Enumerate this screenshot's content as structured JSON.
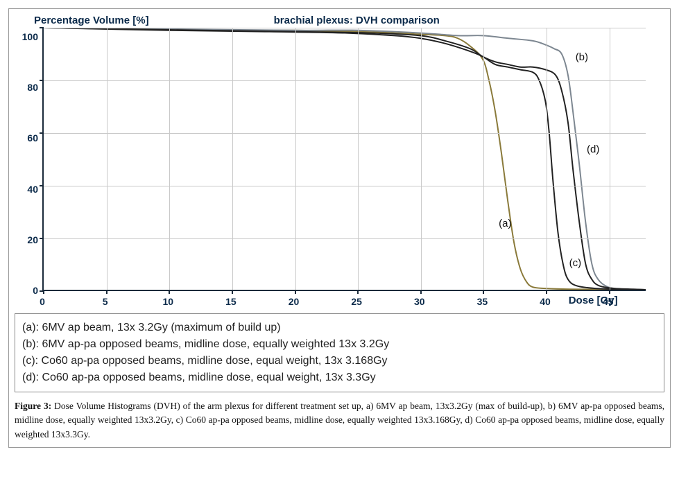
{
  "chart": {
    "type": "line",
    "y_axis_title": "Percentage Volume [%]",
    "title": "brachial plexus: DVH comparison",
    "x_axis_title": "Dose [Gy]",
    "xlim": [
      0,
      48
    ],
    "ylim": [
      0,
      100
    ],
    "x_ticks": [
      0,
      5,
      10,
      15,
      20,
      25,
      30,
      35,
      40,
      45
    ],
    "y_ticks": [
      0,
      20,
      40,
      60,
      80,
      100
    ],
    "grid_color": "#c9c9c9",
    "axis_color": "#1a2a3a",
    "background_color": "#ffffff",
    "text_color": "#0b2a4a",
    "line_width": 2,
    "series": {
      "a": {
        "label": "(a)",
        "color": "#8a7a3a",
        "points": [
          [
            0,
            100
          ],
          [
            5,
            100
          ],
          [
            10,
            99.5
          ],
          [
            15,
            99
          ],
          [
            20,
            99
          ],
          [
            25,
            98.5
          ],
          [
            28,
            98
          ],
          [
            30,
            97.5
          ],
          [
            32,
            97
          ],
          [
            33,
            96
          ],
          [
            34,
            93
          ],
          [
            35,
            88
          ],
          [
            35.5,
            80
          ],
          [
            36,
            68
          ],
          [
            36.5,
            52
          ],
          [
            37,
            34
          ],
          [
            37.5,
            18
          ],
          [
            38,
            8
          ],
          [
            38.5,
            3
          ],
          [
            39,
            1
          ],
          [
            40,
            0.5
          ],
          [
            42,
            0.2
          ],
          [
            45,
            0.1
          ],
          [
            48,
            0
          ]
        ],
        "label_pos": [
          36.2,
          28
        ]
      },
      "b": {
        "label": "(b)",
        "color": "#7d8791",
        "points": [
          [
            0,
            100
          ],
          [
            10,
            99.5
          ],
          [
            20,
            99
          ],
          [
            25,
            99
          ],
          [
            30,
            98
          ],
          [
            33,
            97
          ],
          [
            35,
            97
          ],
          [
            37,
            96
          ],
          [
            39,
            95
          ],
          [
            40,
            93.5
          ],
          [
            40.7,
            92
          ],
          [
            41.3,
            90
          ],
          [
            41.8,
            82
          ],
          [
            42.2,
            68
          ],
          [
            42.7,
            48
          ],
          [
            43.2,
            26
          ],
          [
            43.7,
            10
          ],
          [
            44.2,
            4
          ],
          [
            45,
            1
          ],
          [
            46,
            0.3
          ],
          [
            48,
            0
          ]
        ],
        "label_pos": [
          42.3,
          91
        ]
      },
      "c": {
        "label": "(c)",
        "color": "#222222",
        "points": [
          [
            0,
            100
          ],
          [
            10,
            99
          ],
          [
            18,
            98.5
          ],
          [
            24,
            98
          ],
          [
            28,
            97
          ],
          [
            30,
            96
          ],
          [
            32,
            94
          ],
          [
            34,
            91
          ],
          [
            35,
            89
          ],
          [
            36,
            86
          ],
          [
            37,
            85
          ],
          [
            38,
            84
          ],
          [
            39,
            83
          ],
          [
            39.5,
            80
          ],
          [
            40,
            72
          ],
          [
            40.3,
            60
          ],
          [
            40.6,
            42
          ],
          [
            41,
            22
          ],
          [
            41.4,
            10
          ],
          [
            41.8,
            4
          ],
          [
            42.5,
            1.5
          ],
          [
            44,
            0.5
          ],
          [
            46,
            0.2
          ],
          [
            48,
            0
          ]
        ],
        "label_pos": [
          41.8,
          13
        ]
      },
      "d": {
        "label": "(d)",
        "color": "#222222",
        "points": [
          [
            0,
            100
          ],
          [
            10,
            99.2
          ],
          [
            20,
            98.5
          ],
          [
            26,
            98
          ],
          [
            30,
            97
          ],
          [
            32,
            95
          ],
          [
            34,
            92
          ],
          [
            35,
            89
          ],
          [
            36,
            87
          ],
          [
            37,
            86
          ],
          [
            38,
            85
          ],
          [
            39,
            85
          ],
          [
            40,
            84
          ],
          [
            40.8,
            82
          ],
          [
            41.3,
            76
          ],
          [
            41.8,
            64
          ],
          [
            42.2,
            46
          ],
          [
            42.7,
            26
          ],
          [
            43.2,
            10
          ],
          [
            43.7,
            4
          ],
          [
            44.3,
            1.5
          ],
          [
            45.5,
            0.5
          ],
          [
            47,
            0.2
          ],
          [
            48,
            0
          ]
        ],
        "label_pos": [
          43.2,
          56
        ]
      }
    }
  },
  "legend": {
    "items": [
      "(a): 6MV ap beam, 13x 3.2Gy (maximum of build up)",
      "(b): 6MV ap-pa opposed beams, midline dose, equally weighted 13x 3.2Gy",
      "(c): Co60 ap-pa opposed beams, midline dose, equal weight, 13x 3.168Gy",
      "(d): Co60 ap-pa opposed beams, midline dose, equal weight, 13x 3.3Gy"
    ]
  },
  "caption": {
    "label": "Figure 3:",
    "text": "Dose Volume Histograms (DVH) of the arm plexus for different treatment set up, a) 6MV ap beam, 13x3.2Gy (max of build-up), b) 6MV ap-pa opposed beams, midline dose, equally weighted 13x3.2Gy, c) Co60 ap-pa opposed beams, midline dose, equally weighted 13x3.168Gy, d) Co60 ap-pa opposed beams, midline dose, equally weighted 13x3.3Gy."
  }
}
